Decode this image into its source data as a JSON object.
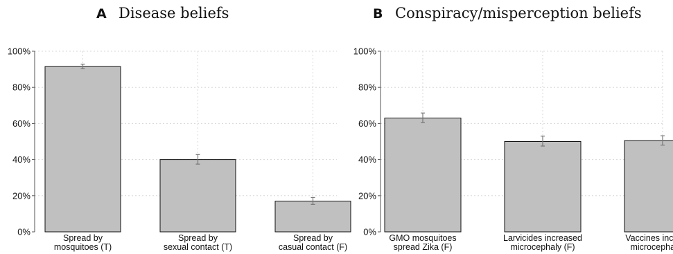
{
  "chart_data": [
    {
      "type": "bar",
      "panel": "A",
      "title": "Disease beliefs",
      "categories": [
        [
          "Spread by",
          "mosquitoes (T)"
        ],
        [
          "Spread by",
          "sexual contact (T)"
        ],
        [
          "Spread by",
          "casual contact (F)"
        ]
      ],
      "values": [
        91.5,
        40,
        17
      ],
      "error_bars": [
        [
          90.3,
          92.8
        ],
        [
          37.5,
          42.8
        ],
        [
          15.2,
          19
        ]
      ],
      "yticks": [
        "0%",
        "20%",
        "40%",
        "60%",
        "80%",
        "100%"
      ],
      "ylim": [
        0,
        100
      ],
      "grid": true,
      "bar_color": "#c0c0c0"
    },
    {
      "type": "bar",
      "panel": "B",
      "title": "Conspiracy/misperception beliefs",
      "categories": [
        [
          "GMO mosquitoes",
          "spread Zika (F)"
        ],
        [
          "Larvicides increased",
          "microcephaly (F)"
        ],
        [
          "Vaccines increased",
          "microcephaly (F)"
        ]
      ],
      "values": [
        63,
        50,
        50.5
      ],
      "error_bars": [
        [
          60.5,
          65.8
        ],
        [
          47.5,
          53
        ],
        [
          48,
          53.2
        ]
      ],
      "yticks": [
        "0%",
        "20%",
        "40%",
        "60%",
        "80%",
        "100%"
      ],
      "ylim": [
        0,
        100
      ],
      "grid": true,
      "bar_color": "#c0c0c0"
    }
  ]
}
